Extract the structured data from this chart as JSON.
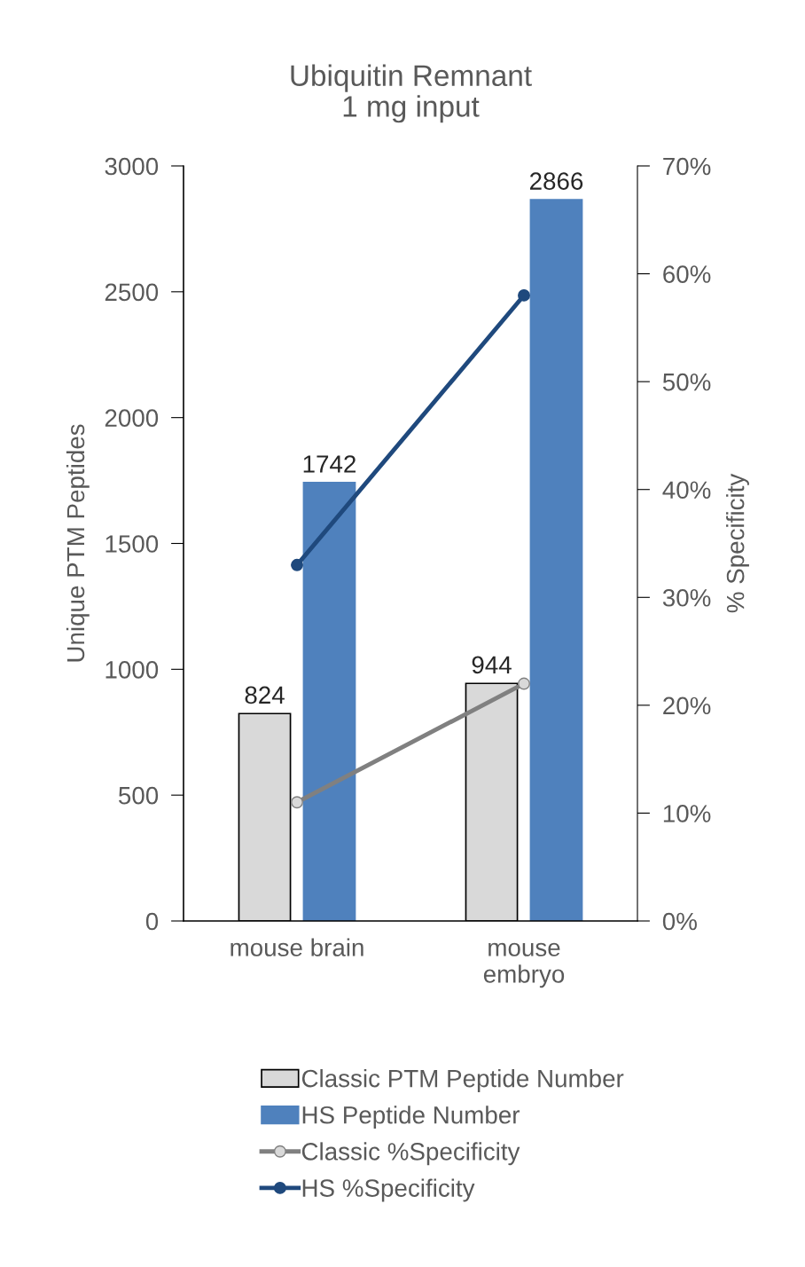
{
  "chart_data": {
    "type": "bar",
    "title": "Ubiquitin Remnant\n1 mg input",
    "categories": [
      "mouse brain",
      "mouse\nembryo"
    ],
    "ylabel": "Unique PTM Peptides",
    "y2label": "% Specificity",
    "ylim": [
      0,
      3000
    ],
    "yticks": [
      0,
      500,
      1000,
      1500,
      2000,
      2500,
      3000
    ],
    "y2lim": [
      0,
      70
    ],
    "y2ticks": [
      {
        "value": 0,
        "label": "0%"
      },
      {
        "value": 10,
        "label": "10%"
      },
      {
        "value": 20,
        "label": "20%"
      },
      {
        "value": 30,
        "label": "30%"
      },
      {
        "value": 40,
        "label": "40%"
      },
      {
        "value": 50,
        "label": "50%"
      },
      {
        "value": 60,
        "label": "60%"
      },
      {
        "value": 70,
        "label": "70%"
      }
    ],
    "grid": false,
    "legend": "bottom",
    "marker": "circle",
    "series": [
      {
        "name": "Classic PTM Peptide Number",
        "color": "#d9d9d9",
        "values": [
          824,
          944
        ],
        "data_labels": true
      },
      {
        "name": "HS Peptide Number",
        "color": "#4f81bd",
        "values": [
          1742,
          2866
        ],
        "data_labels": true
      },
      {
        "name": "Classic %Specificity",
        "type": "line",
        "axis": "y2",
        "color": "#808080",
        "values": [
          11,
          22
        ]
      },
      {
        "name": "HS %Specificity",
        "type": "line",
        "axis": "y2",
        "color": "#1f497d",
        "values": [
          33,
          58
        ]
      }
    ]
  }
}
